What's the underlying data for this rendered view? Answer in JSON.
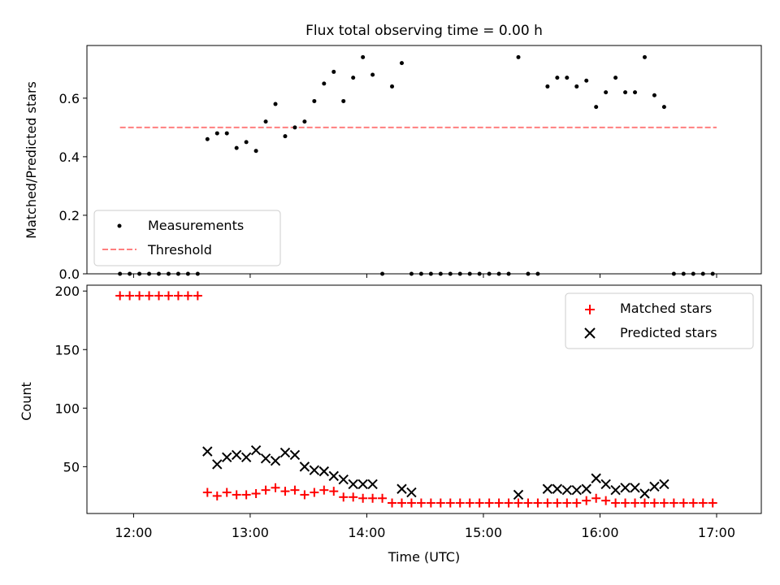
{
  "title": "Flux total observing time = 0.00 h",
  "colors": {
    "matched": "#ff0000",
    "predicted": "#000000",
    "threshold": "#ff7f7f",
    "measurement": "#000000"
  },
  "chart_data": [
    {
      "type": "scatter",
      "ylabel": "Matched/Predicted stars",
      "ylim": [
        0,
        0.78
      ],
      "yticks": [
        "0.0",
        "0.2",
        "0.4",
        "0.6"
      ],
      "legend": {
        "position": "lower-left",
        "items": [
          "Measurements",
          "Threshold"
        ]
      },
      "threshold": {
        "name": "Threshold",
        "value": 0.5,
        "x_range": [
          "11:53",
          "17:00"
        ]
      },
      "series": [
        {
          "name": "Measurements",
          "x": [
            "11:53",
            "11:58",
            "12:03",
            "12:08",
            "12:13",
            "12:18",
            "12:23",
            "12:28",
            "12:33",
            "12:38",
            "12:43",
            "12:48",
            "12:53",
            "12:58",
            "13:03",
            "13:08",
            "13:13",
            "13:18",
            "13:23",
            "13:28",
            "13:33",
            "13:38",
            "13:43",
            "13:48",
            "13:53",
            "13:58",
            "14:03",
            "14:08",
            "14:13",
            "14:18",
            "14:23",
            "14:28",
            "14:33",
            "14:38",
            "14:43",
            "14:48",
            "14:53",
            "14:58",
            "15:03",
            "15:08",
            "15:13",
            "15:18",
            "15:23",
            "15:28",
            "15:33",
            "15:38",
            "15:43",
            "15:48",
            "15:53",
            "15:58",
            "16:03",
            "16:08",
            "16:13",
            "16:18",
            "16:23",
            "16:28",
            "16:33",
            "16:38",
            "16:43",
            "16:48",
            "16:53",
            "16:58"
          ],
          "y": [
            0,
            0,
            0,
            0,
            0,
            0,
            0,
            0,
            0,
            0.46,
            0.48,
            0.48,
            0.43,
            0.45,
            0.42,
            0.52,
            0.58,
            0.47,
            0.5,
            0.52,
            0.59,
            0.65,
            0.69,
            0.59,
            0.67,
            0.74,
            0.68,
            0,
            0.64,
            0.72,
            0,
            0,
            0,
            0,
            0,
            0,
            0,
            0,
            0,
            0,
            0,
            0.74,
            0,
            0,
            0.64,
            0.67,
            0.67,
            0.64,
            0.66,
            0.57,
            0.62,
            0.67,
            0.62,
            0.62,
            0.74,
            0.61,
            0.57,
            0,
            0,
            0,
            0,
            0
          ]
        }
      ]
    },
    {
      "type": "scatter",
      "xlabel": "Time (UTC)",
      "ylabel": "Count",
      "ylim": [
        10,
        205
      ],
      "yticks": [
        "50",
        "100",
        "150",
        "200"
      ],
      "xticks": [
        "12:00",
        "13:00",
        "14:00",
        "15:00",
        "16:00",
        "17:00"
      ],
      "xlim": [
        "11:36",
        "17:23"
      ],
      "legend": {
        "position": "top-right",
        "items": [
          "Matched stars",
          "Predicted stars"
        ]
      },
      "series": [
        {
          "name": "Matched stars",
          "x": [
            "11:53",
            "11:58",
            "12:03",
            "12:08",
            "12:13",
            "12:18",
            "12:23",
            "12:28",
            "12:33",
            "12:38",
            "12:43",
            "12:48",
            "12:53",
            "12:58",
            "13:03",
            "13:08",
            "13:13",
            "13:18",
            "13:23",
            "13:28",
            "13:33",
            "13:38",
            "13:43",
            "13:48",
            "13:53",
            "13:58",
            "14:03",
            "14:08",
            "14:13",
            "14:18",
            "14:23",
            "14:28",
            "14:33",
            "14:38",
            "14:43",
            "14:48",
            "14:53",
            "14:58",
            "15:03",
            "15:08",
            "15:13",
            "15:18",
            "15:23",
            "15:28",
            "15:33",
            "15:38",
            "15:43",
            "15:48",
            "15:53",
            "15:58",
            "16:03",
            "16:08",
            "16:13",
            "16:18",
            "16:23",
            "16:28",
            "16:33",
            "16:38",
            "16:43",
            "16:48",
            "16:53",
            "16:58"
          ],
          "y": [
            196,
            196,
            196,
            196,
            196,
            196,
            196,
            196,
            196,
            28,
            25,
            28,
            26,
            26,
            27,
            30,
            32,
            29,
            30,
            26,
            28,
            30,
            29,
            24,
            24,
            23,
            23,
            23,
            19,
            19,
            19,
            19,
            19,
            19,
            19,
            19,
            19,
            19,
            19,
            19,
            19,
            19,
            19,
            19,
            19,
            19,
            19,
            19,
            21,
            23,
            21,
            19,
            19,
            19,
            19,
            19,
            19,
            19,
            19,
            19,
            19,
            19
          ]
        },
        {
          "name": "Predicted stars",
          "x": [
            "12:38",
            "12:43",
            "12:48",
            "12:53",
            "12:58",
            "13:03",
            "13:08",
            "13:13",
            "13:18",
            "13:23",
            "13:28",
            "13:33",
            "13:38",
            "13:43",
            "13:48",
            "13:53",
            "13:58",
            "14:03",
            "14:18",
            "14:23",
            "15:18",
            "15:33",
            "15:38",
            "15:43",
            "15:48",
            "15:53",
            "15:58",
            "16:03",
            "16:08",
            "16:13",
            "16:18",
            "16:23",
            "16:28",
            "16:33"
          ],
          "y": [
            63,
            52,
            58,
            60,
            58,
            64,
            57,
            55,
            62,
            60,
            50,
            47,
            46,
            42,
            39,
            35,
            35,
            35,
            31,
            28,
            26,
            31,
            31,
            30,
            30,
            31,
            40,
            35,
            30,
            32,
            32,
            27,
            33,
            35
          ]
        }
      ]
    }
  ]
}
